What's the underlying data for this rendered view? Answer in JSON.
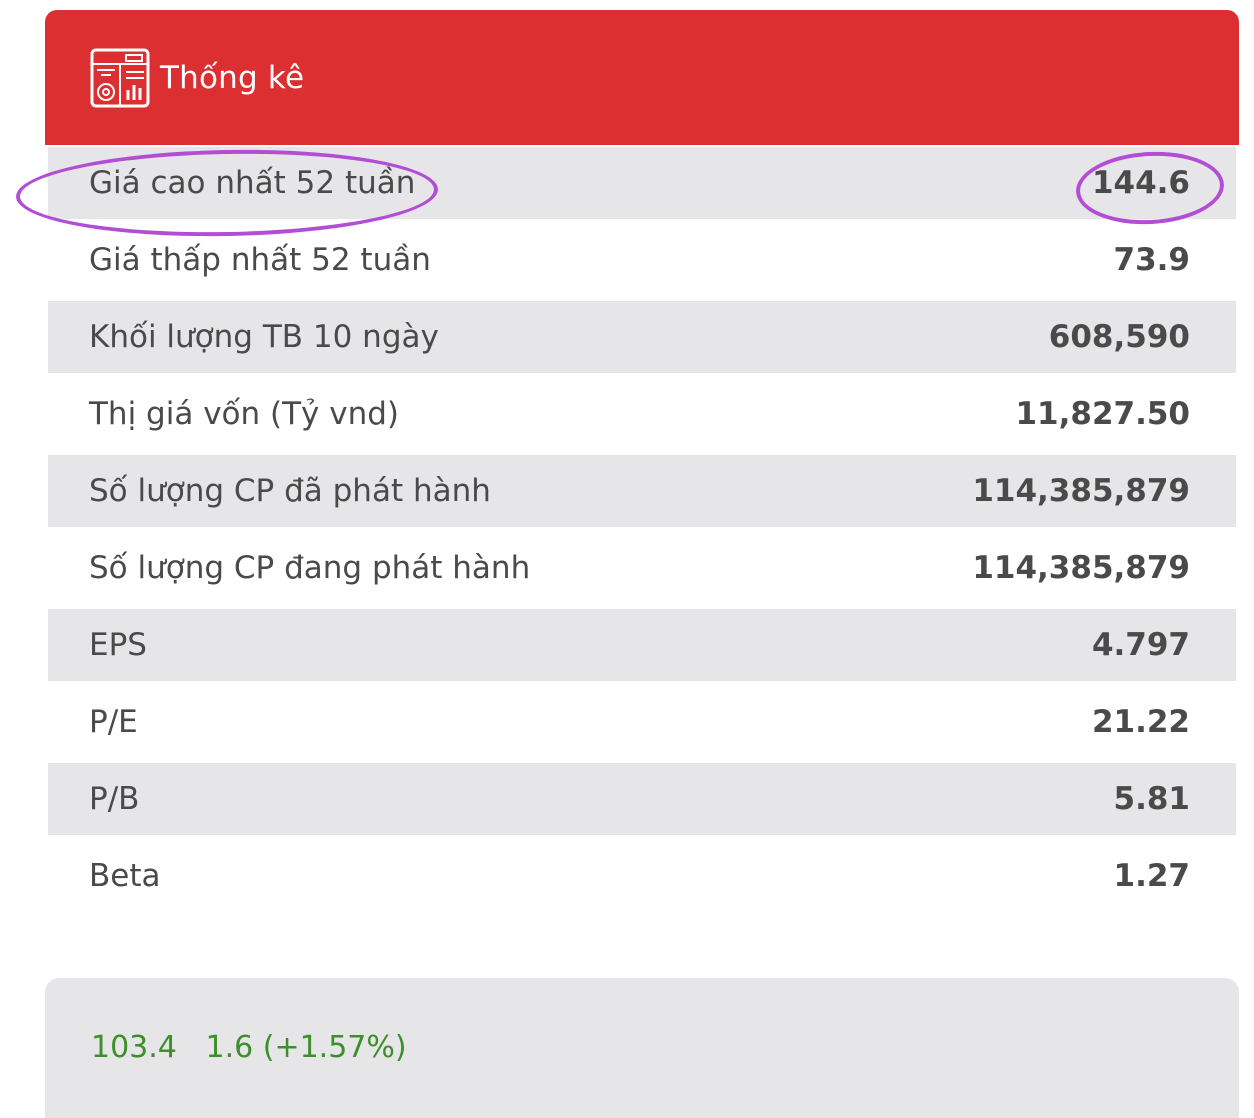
{
  "header": {
    "title": "Thống kê",
    "icon": "statistics-report-icon"
  },
  "stats": [
    {
      "label": "Giá cao nhất 52 tuần",
      "value": "144.6"
    },
    {
      "label": "Giá thấp nhất 52 tuần",
      "value": "73.9"
    },
    {
      "label": "Khối lượng TB 10 ngày",
      "value": "608,590"
    },
    {
      "label": "Thị giá vốn (Tỷ vnd)",
      "value": "11,827.50"
    },
    {
      "label": "Số lượng CP đã phát hành",
      "value": "114,385,879"
    },
    {
      "label": "Số lượng CP đang phát hành",
      "value": "114,385,879"
    },
    {
      "label": "EPS",
      "value": "4.797"
    },
    {
      "label": "P/E",
      "value": "21.22"
    },
    {
      "label": "P/B",
      "value": "5.81"
    },
    {
      "label": "Beta",
      "value": "1.27"
    }
  ],
  "quote": {
    "price": "103.4",
    "change": "1.6 (+1.57%)"
  },
  "colors": {
    "header_bg": "#dc2f31",
    "row_shade": "#e6e6e8",
    "quote_green": "#3c8f2a",
    "annotation_purple": "#b44dd6"
  }
}
